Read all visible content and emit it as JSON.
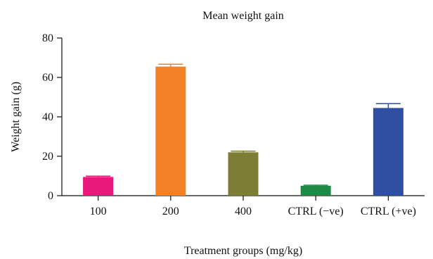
{
  "chart_data": {
    "type": "bar",
    "title": "Mean weight gain",
    "xlabel": "Treatment groups (mg/kg)",
    "ylabel": "Weight gain (g)",
    "categories": [
      "100",
      "200",
      "400",
      "CTRL (−ve)",
      "CTRL (+ve)"
    ],
    "values": [
      9.5,
      65.5,
      22,
      5,
      44.5
    ],
    "errors": [
      0.4,
      1.2,
      0.6,
      0.3,
      2.2
    ],
    "colors": [
      "#e8197a",
      "#f28225",
      "#7d7d35",
      "#1f8a45",
      "#2f4fa2"
    ],
    "ylim": [
      0,
      80
    ],
    "yticks": [
      0,
      20,
      40,
      60,
      80
    ],
    "grid": false,
    "legend": "none"
  }
}
